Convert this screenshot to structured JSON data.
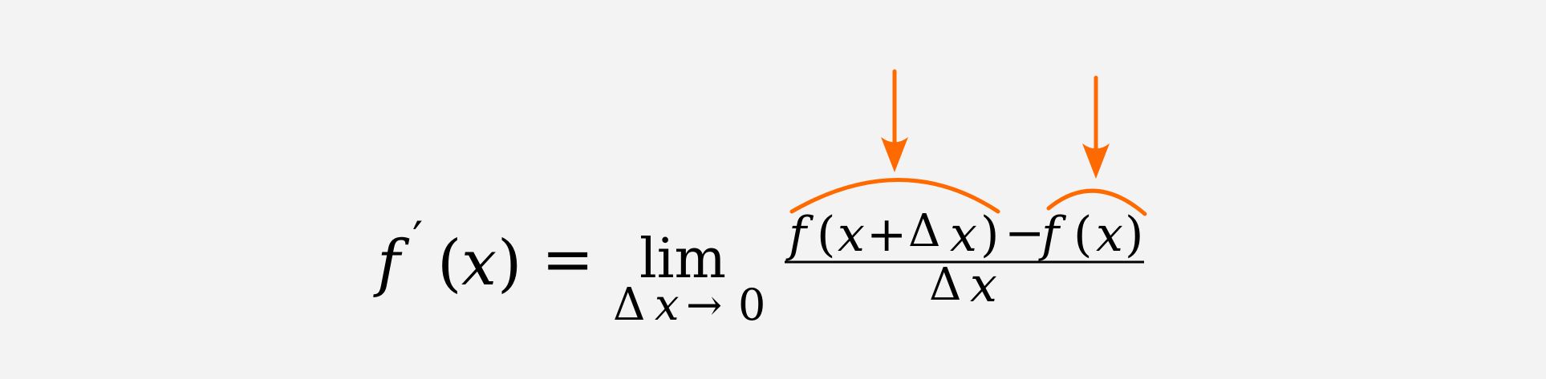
{
  "formula": {
    "lhs_f": "f",
    "lhs_prime": "′",
    "lhs_open": "(",
    "lhs_x": "x",
    "lhs_close": ")",
    "equals": "=",
    "lim": "lim",
    "lim_sub_delta": "Δ",
    "lim_sub_x": "x",
    "lim_sub_arrow": "→",
    "lim_sub_zero": "0",
    "num_f1": "f",
    "num_open1": "(",
    "num_x1": "x",
    "num_plus": "+",
    "num_delta": "Δ",
    "num_x2": "x",
    "num_close1": ")",
    "num_minus": "−",
    "num_f2": "f",
    "num_open2": "(",
    "num_x3": "x",
    "num_close2": ")",
    "den_delta": "Δ",
    "den_x": "x"
  },
  "annotation": {
    "color": "#ff6a00"
  }
}
